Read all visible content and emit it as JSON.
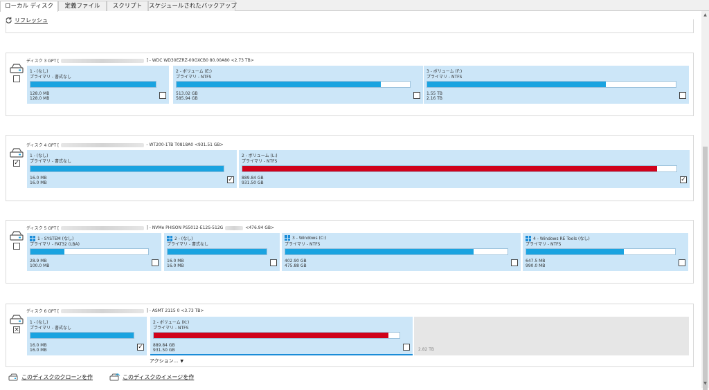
{
  "tabs": [
    "ローカル ディスク",
    "定義ファイル",
    "スクリプト",
    "スケジュールされたバックアップ"
  ],
  "refresh_label": "リフレッシュ",
  "colors": {
    "used_blue": "#1aa3e0",
    "used_red": "#d0021b",
    "partition_bg": "#cce6f8"
  },
  "disks": [
    {
      "label": "ディスク 3 GPT [",
      "model": "] - WDC WD30EZRZ-00GXCB0 80.00A80  <2.73 TB>",
      "checked": false,
      "partitions": [
        {
          "name": "1 - (なし)",
          "type": "プライマリ - 書式なし",
          "used": "128.0 MB",
          "total": "128.0 MB",
          "fill": 1.0,
          "color": "blue",
          "checked": false,
          "win": false
        },
        {
          "name": "2 - ボリューム (E:)",
          "type": "プライマリ - NTFS",
          "used": "513.02 GB",
          "total": "585.94 GB",
          "fill": 0.876,
          "color": "blue",
          "checked": false,
          "win": false
        },
        {
          "name": "3 - ボリューム (F:)",
          "type": "プライマリ - NTFS",
          "used": "1.55 TB",
          "total": "2.16 TB",
          "fill": 0.72,
          "color": "blue",
          "checked": false,
          "win": false
        }
      ]
    },
    {
      "label": "ディスク 4 GPT [",
      "model": "- WT200-1TB T0818A0  <931.51 GB>",
      "checked": true,
      "partitions": [
        {
          "name": "1 - (なし)",
          "type": "プライマリ - 書式なし",
          "used": "16.0 MB",
          "total": "16.0 MB",
          "fill": 1.0,
          "color": "blue",
          "checked": true,
          "win": false
        },
        {
          "name": "2 - ボリューム (L:)",
          "type": "プライマリ - NTFS",
          "used": "889.84 GB",
          "total": "931.50 GB",
          "fill": 0.955,
          "color": "red",
          "checked": true,
          "win": false
        }
      ]
    },
    {
      "label": "ディスク 5 GPT [",
      "model": "] - NVMe PHISON PS5012-E12S-512G",
      "size": "<476.94 GB>",
      "checked": false,
      "partitions": [
        {
          "name": "1 - SYSTEM (なし)",
          "type": "プライマリ - FAT32 (LBA)",
          "used": "28.9 MB",
          "total": "100.0 MB",
          "fill": 0.289,
          "color": "blue",
          "checked": false,
          "win": true
        },
        {
          "name": "2 - (なし)",
          "type": "プライマリ - 書式なし",
          "used": "16.0 MB",
          "total": "16.0 MB",
          "fill": 1.0,
          "color": "blue",
          "checked": false,
          "win": true
        },
        {
          "name": "3 - Windows (C:)",
          "type": "プライマリ - NTFS",
          "used": "402.90 GB",
          "total": "475.88 GB",
          "fill": 0.847,
          "color": "blue",
          "checked": false,
          "win": true
        },
        {
          "name": "4 - Windows RE Tools (なし)",
          "type": "プライマリ - NTFS",
          "used": "647.5 MB",
          "total": "990.0 MB",
          "fill": 0.654,
          "color": "blue",
          "checked": false,
          "win": true
        }
      ]
    },
    {
      "label": "ディスク 6 GPT [",
      "model": "] - ASMT    2115          0  <3.73 TB>",
      "checked": "partial",
      "partitions": [
        {
          "name": "1 - (なし)",
          "type": "プライマリ - 書式なし",
          "used": "16.0 MB",
          "total": "16.0 MB",
          "fill": 1.0,
          "color": "blue",
          "checked": true,
          "win": false
        },
        {
          "name": "2 - ボリューム (K:)",
          "type": "プライマリ - NTFS",
          "used": "889.84 GB",
          "total": "931.50 GB",
          "fill": 0.955,
          "color": "red",
          "checked": false,
          "win": false
        }
      ],
      "unallocated": "2.82 TB",
      "actions_label": "アクション..."
    }
  ],
  "footer": {
    "clone_label": "このディスクのクローンを作",
    "image_label": "このディスクのイメージを作"
  }
}
